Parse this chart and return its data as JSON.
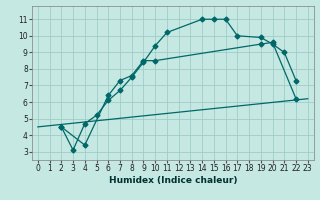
{
  "title": "",
  "xlabel": "Humidex (Indice chaleur)",
  "bg_color": "#c5e8e2",
  "grid_color": "#a0ccc8",
  "line_color": "#006868",
  "xlim": [
    -0.5,
    23.5
  ],
  "ylim": [
    2.5,
    11.8
  ],
  "xticks": [
    0,
    1,
    2,
    3,
    4,
    5,
    6,
    7,
    8,
    9,
    10,
    11,
    12,
    13,
    14,
    15,
    16,
    17,
    18,
    19,
    20,
    21,
    22,
    23
  ],
  "yticks": [
    3,
    4,
    5,
    6,
    7,
    8,
    9,
    10,
    11
  ],
  "line1_x": [
    2,
    3,
    4,
    5,
    6,
    7,
    8,
    9,
    10,
    11,
    14,
    15,
    16,
    17,
    19,
    20,
    21,
    22
  ],
  "line1_y": [
    4.5,
    3.1,
    4.7,
    5.2,
    6.1,
    6.7,
    7.5,
    8.4,
    9.4,
    10.2,
    11.0,
    11.0,
    11.0,
    10.0,
    9.9,
    9.5,
    9.0,
    7.3
  ],
  "line2_x": [
    2,
    4,
    6,
    7,
    8,
    9,
    10,
    19,
    20,
    22
  ],
  "line2_y": [
    4.5,
    3.4,
    6.4,
    7.3,
    7.6,
    8.5,
    8.5,
    9.5,
    9.6,
    6.2
  ],
  "line3_x": [
    0,
    23
  ],
  "line3_y": [
    4.5,
    6.2
  ]
}
